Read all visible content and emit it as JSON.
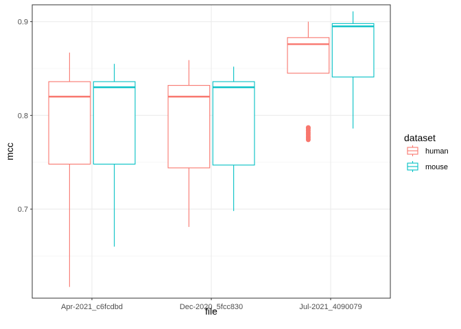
{
  "chart_data": {
    "type": "boxplot",
    "xlabel": "file",
    "ylabel": "mcc",
    "categories": [
      "Apr-2021_c6fcdbd",
      "Dec-2020_5fcc830",
      "Jul-2021_4090079"
    ],
    "y_ticks": [
      0.7,
      0.8,
      0.9
    ],
    "ylim": [
      0.605,
      0.918
    ],
    "grid": true,
    "legend": {
      "title": "dataset",
      "position": "right"
    },
    "series": [
      {
        "name": "human",
        "color": "#F8766D",
        "boxes": [
          {
            "whisker_low": 0.617,
            "q1": 0.748,
            "median": 0.82,
            "q3": 0.836,
            "whisker_high": 0.867,
            "outliers": []
          },
          {
            "whisker_low": 0.681,
            "q1": 0.744,
            "median": 0.82,
            "q3": 0.832,
            "whisker_high": 0.859,
            "outliers": []
          },
          {
            "whisker_low": 0.845,
            "q1": 0.845,
            "median": 0.876,
            "q3": 0.883,
            "whisker_high": 0.9,
            "outliers": [
              0.774,
              0.776,
              0.778,
              0.78,
              0.782,
              0.784,
              0.786,
              0.787
            ]
          }
        ]
      },
      {
        "name": "mouse",
        "color": "#00BFC4",
        "boxes": [
          {
            "whisker_low": 0.66,
            "q1": 0.748,
            "median": 0.83,
            "q3": 0.836,
            "whisker_high": 0.855,
            "outliers": []
          },
          {
            "whisker_low": 0.698,
            "q1": 0.747,
            "median": 0.83,
            "q3": 0.836,
            "whisker_high": 0.852,
            "outliers": []
          },
          {
            "whisker_low": 0.786,
            "q1": 0.841,
            "median": 0.895,
            "q3": 0.898,
            "whisker_high": 0.911,
            "outliers": []
          }
        ]
      }
    ]
  }
}
